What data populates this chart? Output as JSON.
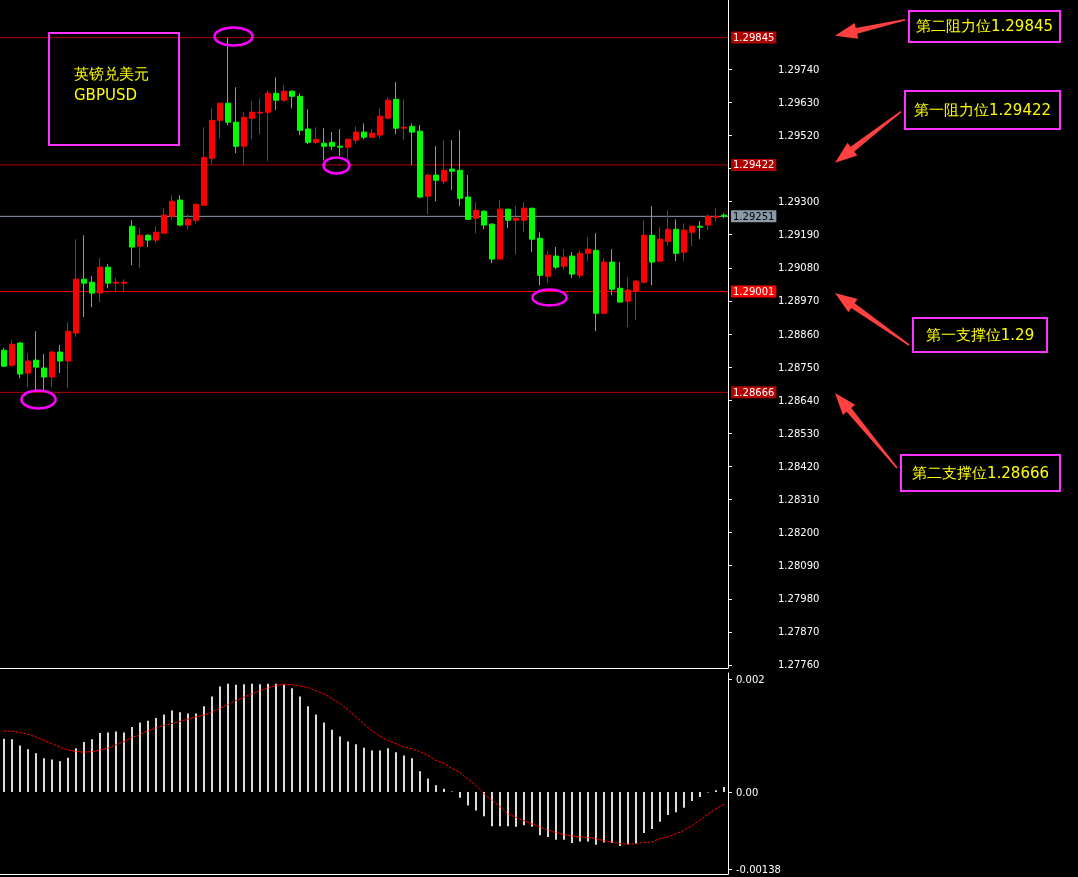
{
  "chart_data": [
    {
      "type": "candlestick",
      "title": "英镑兑美元",
      "subtitle": "GBPUSD",
      "annotations": [
        "第二阻力位1.29845",
        "第一阻力位1.29422",
        "第一支撑位1.29",
        "第二支撑位1.28666"
      ],
      "categories": [
        null,
        null,
        null,
        null,
        null,
        null,
        null,
        null,
        null,
        null,
        null,
        null,
        null,
        null,
        null,
        null,
        null,
        null,
        null,
        null,
        null,
        null,
        null,
        null,
        null,
        null,
        null,
        null,
        null,
        null,
        null,
        null,
        null,
        null,
        null,
        null,
        null,
        null,
        null,
        null,
        null,
        null,
        null,
        null,
        null,
        null,
        null,
        null,
        null,
        null,
        null,
        null,
        null,
        null,
        null,
        null,
        null,
        null,
        null,
        null,
        null,
        null,
        null,
        null,
        null,
        null,
        null,
        null,
        null,
        null,
        null,
        null,
        null,
        null,
        null,
        null,
        null,
        null,
        null,
        null,
        null,
        null,
        null,
        null,
        null,
        null,
        null,
        null,
        null,
        null,
        null
      ],
      "ohlc": [
        [
          1.28806,
          1.28813,
          1.2875,
          1.28753
        ],
        [
          1.28756,
          1.2884,
          1.2875,
          1.28826
        ],
        [
          1.2883,
          1.28833,
          1.28713,
          1.28727
        ],
        [
          1.2873,
          1.28796,
          1.28683,
          1.2877
        ],
        [
          1.28773,
          1.28869,
          1.28667,
          1.2875
        ],
        [
          1.28747,
          1.28793,
          1.28667,
          1.28717
        ],
        [
          1.28717,
          1.28806,
          1.28683,
          1.288
        ],
        [
          1.288,
          1.28823,
          1.2873,
          1.2877
        ],
        [
          1.2877,
          1.28899,
          1.2868,
          1.28869
        ],
        [
          1.28863,
          1.29175,
          1.2885,
          1.29042
        ],
        [
          1.29042,
          1.29188,
          1.28916,
          1.29029
        ],
        [
          1.29032,
          1.29052,
          1.28949,
          1.28996
        ],
        [
          1.28996,
          1.29112,
          1.28966,
          1.29082
        ],
        [
          1.29082,
          1.29092,
          1.29012,
          1.29029
        ],
        [
          1.29029,
          1.29046,
          1.28999,
          1.29032
        ],
        [
          1.29029,
          1.29042,
          1.29002,
          1.29032
        ],
        [
          1.29218,
          1.29238,
          1.29089,
          1.29149
        ],
        [
          1.29152,
          1.29212,
          1.29079,
          1.29188
        ],
        [
          1.29188,
          1.29192,
          1.29149,
          1.29172
        ],
        [
          1.29172,
          1.29218,
          1.29162,
          1.29198
        ],
        [
          1.29195,
          1.29278,
          1.29195,
          1.29255
        ],
        [
          1.29251,
          1.29321,
          1.29238,
          1.29301
        ],
        [
          1.29305,
          1.29321,
          1.29218,
          1.29222
        ],
        [
          1.29222,
          1.29258,
          1.29208,
          1.29241
        ],
        [
          1.29238,
          1.29295,
          1.29228,
          1.29291
        ],
        [
          1.29288,
          1.29547,
          1.29288,
          1.29447
        ],
        [
          1.29444,
          1.2961,
          1.29424,
          1.2957
        ],
        [
          1.2957,
          1.29627,
          1.29511,
          1.29627
        ],
        [
          1.29627,
          1.29845,
          1.29554,
          1.29564
        ],
        [
          1.29564,
          1.2968,
          1.29461,
          1.29484
        ],
        [
          1.29484,
          1.29597,
          1.29421,
          1.2958
        ],
        [
          1.29577,
          1.29634,
          1.29507,
          1.29597
        ],
        [
          1.29594,
          1.29643,
          1.29524,
          1.29597
        ],
        [
          1.29597,
          1.2967,
          1.29434,
          1.2966
        ],
        [
          1.2966,
          1.29713,
          1.29604,
          1.29637
        ],
        [
          1.29637,
          1.29687,
          1.2963,
          1.29667
        ],
        [
          1.29667,
          1.2967,
          1.2961,
          1.2965
        ],
        [
          1.2965,
          1.2966,
          1.29521,
          1.29537
        ],
        [
          1.29541,
          1.29607,
          1.29491,
          1.29497
        ],
        [
          1.29497,
          1.29547,
          1.29491,
          1.29507
        ],
        [
          1.29494,
          1.29544,
          1.29437,
          1.29484
        ],
        [
          1.29497,
          1.29531,
          1.29471,
          1.29484
        ],
        [
          1.29484,
          1.29541,
          1.29451,
          1.29481
        ],
        [
          1.29481,
          1.29511,
          1.29441,
          1.29507
        ],
        [
          1.29504,
          1.2955,
          1.29494,
          1.29531
        ],
        [
          1.29531,
          1.2956,
          1.29507,
          1.29514
        ],
        [
          1.29514,
          1.29541,
          1.29511,
          1.29527
        ],
        [
          1.29521,
          1.2961,
          1.29511,
          1.29584
        ],
        [
          1.29577,
          1.29647,
          1.29577,
          1.29637
        ],
        [
          1.2964,
          1.29697,
          1.29524,
          1.29544
        ],
        [
          1.29544,
          1.2964,
          1.29504,
          1.29547
        ],
        [
          1.2955,
          1.2956,
          1.29421,
          1.29531
        ],
        [
          1.29534,
          1.29554,
          1.29311,
          1.29315
        ],
        [
          1.29318,
          1.29394,
          1.29258,
          1.29388
        ],
        [
          1.29388,
          1.29484,
          1.29301,
          1.29371
        ],
        [
          1.29368,
          1.29504,
          1.29358,
          1.29404
        ],
        [
          1.29408,
          1.29504,
          1.29338,
          1.29401
        ],
        [
          1.29404,
          1.29537,
          1.29285,
          1.29311
        ],
        [
          1.29315,
          1.29388,
          1.29241,
          1.29241
        ],
        [
          1.29245,
          1.29298,
          1.29195,
          1.29271
        ],
        [
          1.29268,
          1.29271,
          1.29208,
          1.29222
        ],
        [
          1.29225,
          1.29228,
          1.29095,
          1.29109
        ],
        [
          1.29109,
          1.29305,
          1.29109,
          1.29275
        ],
        [
          1.29275,
          1.29275,
          1.29212,
          1.29238
        ],
        [
          1.29238,
          1.29285,
          1.29125,
          1.29245
        ],
        [
          1.29238,
          1.29298,
          1.29198,
          1.29278
        ],
        [
          1.29278,
          1.29278,
          1.29132,
          1.29175
        ],
        [
          1.29178,
          1.29198,
          1.29022,
          1.29055
        ],
        [
          1.29052,
          1.29135,
          1.29029,
          1.29122
        ],
        [
          1.29119,
          1.29149,
          1.29075,
          1.29082
        ],
        [
          1.29085,
          1.29142,
          1.29075,
          1.29115
        ],
        [
          1.29119,
          1.29132,
          1.29046,
          1.29059
        ],
        [
          1.29055,
          1.29138,
          1.29046,
          1.29128
        ],
        [
          1.29128,
          1.29182,
          1.29102,
          1.29142
        ],
        [
          1.29138,
          1.29195,
          1.28869,
          1.28929
        ],
        [
          1.28929,
          1.29112,
          1.28929,
          1.29099
        ],
        [
          1.29099,
          1.29142,
          1.28989,
          1.29009
        ],
        [
          1.29012,
          1.29099,
          1.28966,
          1.28966
        ],
        [
          1.28969,
          1.29049,
          1.28883,
          1.29006
        ],
        [
          1.29002,
          1.29039,
          1.28906,
          1.29036
        ],
        [
          1.29032,
          1.29238,
          1.29029,
          1.29188
        ],
        [
          1.29188,
          1.29285,
          1.29022,
          1.29099
        ],
        [
          1.29102,
          1.29215,
          1.29102,
          1.29175
        ],
        [
          1.29168,
          1.29271,
          1.29155,
          1.29208
        ],
        [
          1.29208,
          1.29241,
          1.29102,
          1.29128
        ],
        [
          1.29132,
          1.29228,
          1.29102,
          1.29205
        ],
        [
          1.29198,
          1.29222,
          1.29152,
          1.29218
        ],
        [
          1.29218,
          1.29235,
          1.29175,
          1.29215
        ],
        [
          1.29222,
          1.29258,
          1.29205,
          1.29251
        ],
        [
          1.29248,
          1.29278,
          1.29235,
          1.29251
        ],
        [
          1.29255,
          1.29261,
          1.29245,
          1.29251
        ]
      ],
      "ylim": [
        1.2775,
        1.2997
      ],
      "yticks": [
        {
          "value": 1.2776,
          "label": "1.27760"
        },
        {
          "value": 1.2787,
          "label": "1.27870"
        },
        {
          "value": 1.2798,
          "label": "1.27980"
        },
        {
          "value": 1.2809,
          "label": "1.28090"
        },
        {
          "value": 1.282,
          "label": "1.28200"
        },
        {
          "value": 1.2831,
          "label": "1.28310"
        },
        {
          "value": 1.2842,
          "label": "1.28420"
        },
        {
          "value": 1.2853,
          "label": "1.28530"
        },
        {
          "value": 1.2864,
          "label": "1.28640"
        },
        {
          "value": 1.2875,
          "label": "1.28750"
        },
        {
          "value": 1.2886,
          "label": "1.28860"
        },
        {
          "value": 1.2897,
          "label": "1.28970"
        },
        {
          "value": 1.2908,
          "label": "1.29080"
        },
        {
          "value": 1.2919,
          "label": "1.29190"
        },
        {
          "value": 1.293,
          "label": "1.29300"
        },
        {
          "value": 1.2941,
          "label": null
        },
        {
          "value": 1.2952,
          "label": "1.29520"
        },
        {
          "value": 1.2963,
          "label": "1.29630"
        },
        {
          "value": 1.2974,
          "label": "1.29740"
        }
      ],
      "ref_lines": [
        {
          "axis": "y",
          "value": 1.29845,
          "label": "1.29845",
          "color": "#b00000"
        },
        {
          "axis": "y",
          "value": 1.29422,
          "label": "1.29422",
          "color": "#b00000"
        },
        {
          "axis": "y",
          "value": 1.29251,
          "label": "1.29251",
          "color": "#8c9aa8"
        },
        {
          "axis": "y",
          "value": 1.29001,
          "label": "1.29001",
          "color": "#ff0000"
        },
        {
          "axis": "y",
          "value": 1.28666,
          "label": "1.28666",
          "color": "#b00000"
        }
      ],
      "grid": false,
      "tick_labels": "y"
    },
    {
      "type": "bar",
      "categories": [
        null,
        null,
        null,
        null,
        null,
        null,
        null,
        null,
        null,
        null,
        null,
        null,
        null,
        null,
        null,
        null,
        null,
        null,
        null,
        null,
        null,
        null,
        null,
        null,
        null,
        null,
        null,
        null,
        null,
        null,
        null,
        null,
        null,
        null,
        null,
        null,
        null,
        null,
        null,
        null,
        null,
        null,
        null,
        null,
        null,
        null,
        null,
        null,
        null,
        null,
        null,
        null,
        null,
        null,
        null,
        null,
        null,
        null,
        null,
        null,
        null,
        null,
        null,
        null,
        null,
        null,
        null,
        null,
        null,
        null,
        null,
        null,
        null,
        null,
        null,
        null,
        null,
        null,
        null,
        null,
        null,
        null,
        null,
        null,
        null,
        null,
        null,
        null,
        null,
        null,
        null
      ],
      "series": [
        {
          "color": "#dcdcdc",
          "values": [
            0.00095,
            0.00094,
            0.00083,
            0.00076,
            0.00069,
            0.0006,
            0.00058,
            0.00055,
            0.00061,
            0.00078,
            0.00089,
            0.00094,
            0.00105,
            0.00106,
            0.00108,
            0.00106,
            0.00116,
            0.00124,
            0.00127,
            0.00132,
            0.00138,
            0.00145,
            0.00142,
            0.0014,
            0.0014,
            0.00153,
            0.0017,
            0.00188,
            0.00193,
            0.00191,
            0.00192,
            0.00193,
            0.00192,
            0.00193,
            0.00193,
            0.00191,
            0.00185,
            0.0017,
            0.00153,
            0.00138,
            0.00124,
            0.00111,
            0.00099,
            0.0009,
            0.00085,
            0.00079,
            0.00074,
            0.00074,
            0.00078,
            0.00071,
            0.00065,
            0.0006,
            0.00037,
            0.00024,
            0.00012,
            6e-05,
            1e-05,
            -0.0001,
            -0.00024,
            -0.00033,
            -0.00043,
            -0.00061,
            -0.00061,
            -0.00061,
            -0.00062,
            -0.00059,
            -0.00062,
            -0.00077,
            -0.0008,
            -0.00085,
            -0.00085,
            -0.00091,
            -0.00088,
            -0.00088,
            -0.00094,
            -0.0009,
            -0.00091,
            -0.00096,
            -0.00093,
            -0.00092,
            -0.00073,
            -0.00066,
            -0.00053,
            -0.00041,
            -0.00036,
            -0.00028,
            -0.00016,
            -9e-05,
            -1e-05,
            3e-05,
            9e-05
          ]
        },
        {
          "type": "line",
          "color": "#ff0000",
          "line_style": "dotted",
          "marker": "none",
          "values": [
            0.00109,
            0.00108,
            0.00106,
            0.00103,
            0.00098,
            0.00092,
            0.00086,
            0.0008,
            0.00075,
            0.00072,
            0.00071,
            0.00072,
            0.00075,
            0.00078,
            0.00084,
            0.0009,
            0.00097,
            0.00103,
            0.00109,
            0.00114,
            0.00119,
            0.00122,
            0.00126,
            0.0013,
            0.00134,
            0.00137,
            0.00143,
            0.00149,
            0.00156,
            0.00163,
            0.00169,
            0.00175,
            0.00181,
            0.00185,
            0.0019,
            0.00192,
            0.00191,
            0.00189,
            0.00186,
            0.0018,
            0.00175,
            0.00166,
            0.00158,
            0.00146,
            0.00134,
            0.00121,
            0.00109,
            0.00099,
            0.00092,
            0.00086,
            0.0008,
            0.00077,
            0.00072,
            0.00065,
            0.00056,
            0.00051,
            0.00042,
            0.00035,
            0.00023,
            0.00012,
            -3e-05,
            -0.00015,
            -0.00026,
            -0.00039,
            -0.00045,
            -0.00051,
            -0.00057,
            -0.00062,
            -0.00068,
            -0.00072,
            -0.00076,
            -0.00078,
            -0.0008,
            -0.00081,
            -0.00083,
            -0.00087,
            -0.00089,
            -0.00092,
            -0.00093,
            -0.00092,
            -0.0009,
            -0.00089,
            -0.00083,
            -0.0008,
            -0.00074,
            -0.00068,
            -0.0006,
            -0.0005,
            -0.00039,
            -0.0003,
            -0.00022
          ]
        }
      ],
      "ylim": [
        -0.00146,
        0.00212
      ],
      "yticks": [
        0.002,
        {
          "value": 0,
          "label": "0.00"
        },
        -0.00138
      ],
      "grid": false,
      "tick_labels": "y"
    }
  ]
}
